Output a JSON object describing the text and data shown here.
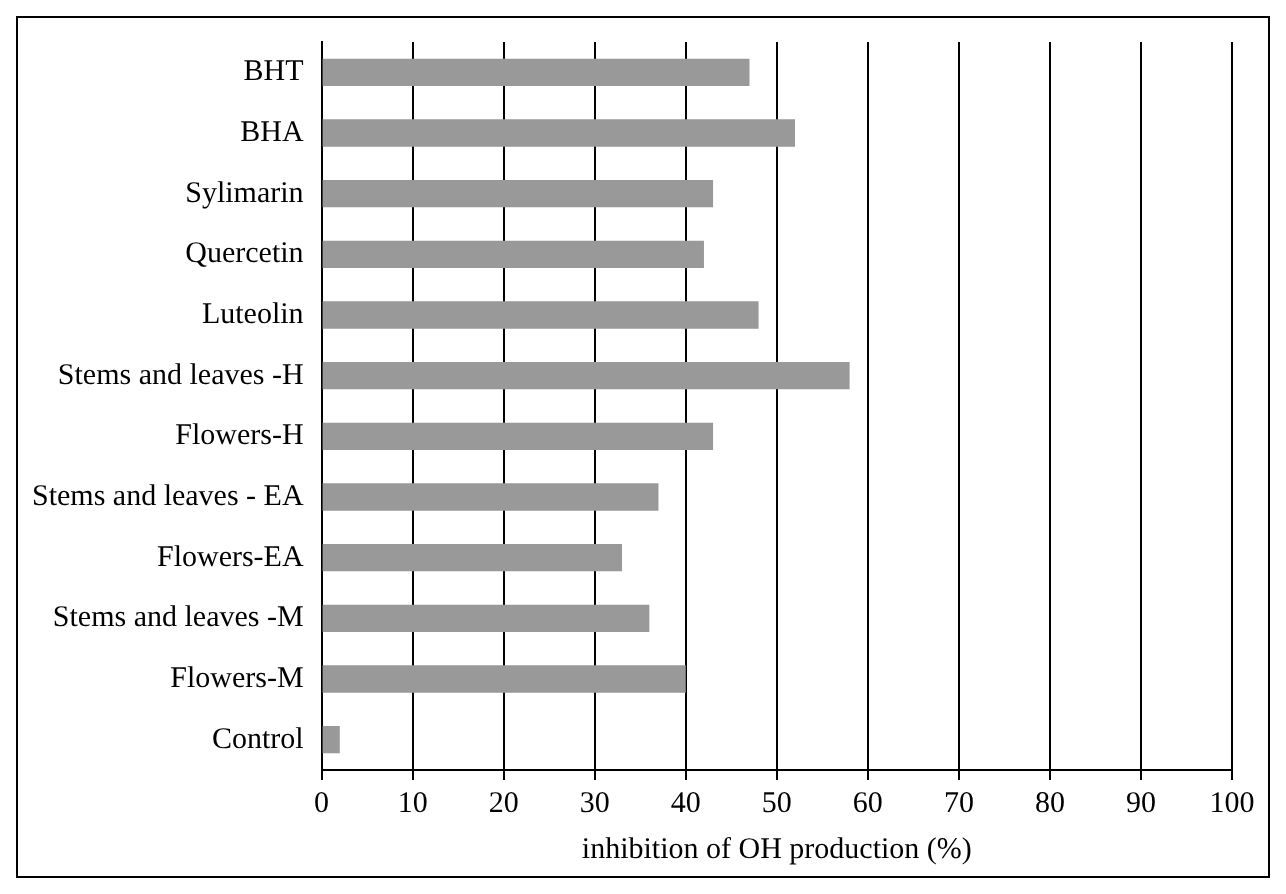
{
  "chart_data": {
    "type": "bar",
    "orientation": "horizontal",
    "xlabel": "inhibition of OH production (%)",
    "categories": [
      "BHT",
      "BHA",
      "Sylimarin",
      "Quercetin",
      "Luteolin",
      "Stems and leaves -H",
      "Flowers-H",
      "Stems and leaves - EA",
      "Flowers-EA",
      "Stems and leaves -M",
      "Flowers-M",
      "Control"
    ],
    "values": [
      47,
      52,
      43,
      42,
      48,
      58,
      43,
      37,
      33,
      36,
      40,
      2
    ],
    "color": "#999999",
    "xlim": [
      0,
      100
    ],
    "xticks": [
      0,
      10,
      20,
      30,
      40,
      50,
      60,
      70,
      80,
      90,
      100
    ],
    "grid": "x"
  }
}
